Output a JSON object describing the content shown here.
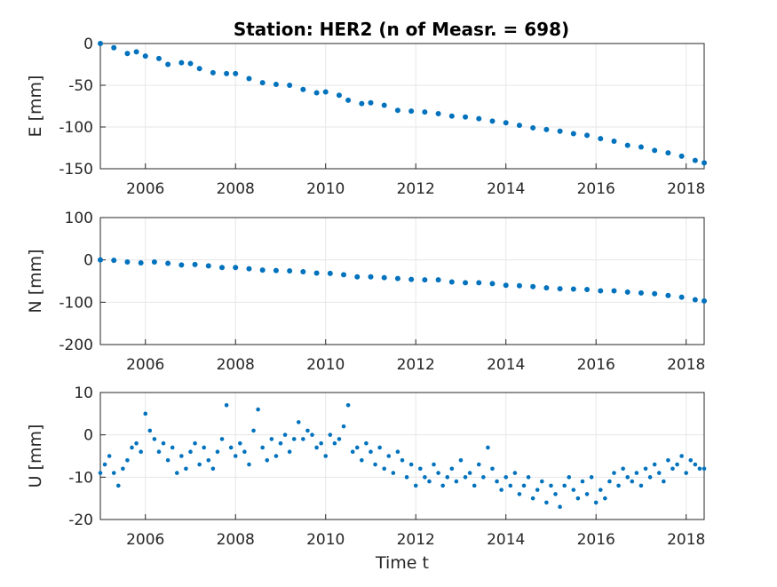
{
  "chart_data": {
    "title": "Station: HER2 (n of Measr. = 698)",
    "type": "scatter",
    "marker_color": "#0072BD",
    "grid": true,
    "subplots": [
      {
        "ylabel": "E [mm]",
        "xlabel": "",
        "xlim": [
          2005.0,
          2018.4
        ],
        "ylim": [
          -150,
          0
        ],
        "xticks": [
          "2006",
          "2008",
          "2010",
          "2012",
          "2014",
          "2016",
          "2018"
        ],
        "yticks": [
          "0",
          "-50",
          "-100",
          "-150"
        ],
        "x": [
          2005.0,
          2005.3,
          2005.6,
          2005.8,
          2006.0,
          2006.3,
          2006.5,
          2006.8,
          2007.0,
          2007.2,
          2007.5,
          2007.8,
          2008.0,
          2008.3,
          2008.6,
          2008.9,
          2009.2,
          2009.5,
          2009.8,
          2010.0,
          2010.3,
          2010.5,
          2010.8,
          2011.0,
          2011.3,
          2011.6,
          2011.9,
          2012.2,
          2012.5,
          2012.8,
          2013.1,
          2013.4,
          2013.7,
          2014.0,
          2014.3,
          2014.6,
          2014.9,
          2015.2,
          2015.5,
          2015.8,
          2016.1,
          2016.4,
          2016.7,
          2017.0,
          2017.3,
          2017.6,
          2017.9,
          2018.2,
          2018.4
        ],
        "y": [
          0,
          -5,
          -12,
          -10,
          -15,
          -18,
          -25,
          -23,
          -24,
          -30,
          -35,
          -36,
          -36,
          -42,
          -47,
          -49,
          -50,
          -55,
          -59,
          -58,
          -62,
          -68,
          -72,
          -71,
          -74,
          -80,
          -81,
          -82,
          -84,
          -87,
          -88,
          -90,
          -93,
          -95,
          -98,
          -101,
          -103,
          -105,
          -108,
          -110,
          -114,
          -117,
          -122,
          -124,
          -128,
          -131,
          -135,
          -140,
          -143
        ]
      },
      {
        "ylabel": "N [mm]",
        "xlabel": "",
        "xlim": [
          2005.0,
          2018.4
        ],
        "ylim": [
          -200,
          100
        ],
        "xticks": [
          "2006",
          "2008",
          "2010",
          "2012",
          "2014",
          "2016",
          "2018"
        ],
        "yticks": [
          "100",
          "0",
          "-100",
          "-200"
        ],
        "x": [
          2005.0,
          2005.3,
          2005.6,
          2005.9,
          2006.2,
          2006.5,
          2006.8,
          2007.1,
          2007.4,
          2007.7,
          2008.0,
          2008.3,
          2008.6,
          2008.9,
          2009.2,
          2009.5,
          2009.8,
          2010.1,
          2010.4,
          2010.7,
          2011.0,
          2011.3,
          2011.6,
          2011.9,
          2012.2,
          2012.5,
          2012.8,
          2013.1,
          2013.4,
          2013.7,
          2014.0,
          2014.3,
          2014.6,
          2014.9,
          2015.2,
          2015.5,
          2015.8,
          2016.1,
          2016.4,
          2016.7,
          2017.0,
          2017.3,
          2017.6,
          2017.9,
          2018.2,
          2018.4
        ],
        "y": [
          0,
          -1,
          -5,
          -7,
          -5,
          -8,
          -12,
          -11,
          -14,
          -18,
          -18,
          -21,
          -24,
          -25,
          -26,
          -28,
          -31,
          -32,
          -35,
          -40,
          -40,
          -42,
          -44,
          -46,
          -47,
          -47,
          -52,
          -54,
          -54,
          -56,
          -60,
          -61,
          -63,
          -66,
          -68,
          -69,
          -70,
          -73,
          -73,
          -76,
          -78,
          -80,
          -84,
          -88,
          -94,
          -97
        ]
      },
      {
        "ylabel": "U [mm]",
        "xlabel": "Time t",
        "xlim": [
          2005.0,
          2018.4
        ],
        "ylim": [
          -20,
          10
        ],
        "xticks": [
          "2006",
          "2008",
          "2010",
          "2012",
          "2014",
          "2016",
          "2018"
        ],
        "yticks": [
          "10",
          "0",
          "-10",
          "-20"
        ],
        "x": [
          2005.0,
          2005.1,
          2005.2,
          2005.3,
          2005.4,
          2005.5,
          2005.6,
          2005.7,
          2005.8,
          2005.9,
          2006.0,
          2006.1,
          2006.2,
          2006.3,
          2006.4,
          2006.5,
          2006.6,
          2006.7,
          2006.8,
          2006.9,
          2007.0,
          2007.1,
          2007.2,
          2007.3,
          2007.4,
          2007.5,
          2007.6,
          2007.7,
          2007.8,
          2007.9,
          2008.0,
          2008.1,
          2008.2,
          2008.3,
          2008.4,
          2008.5,
          2008.6,
          2008.7,
          2008.8,
          2008.9,
          2009.0,
          2009.1,
          2009.2,
          2009.3,
          2009.4,
          2009.5,
          2009.6,
          2009.7,
          2009.8,
          2009.9,
          2010.0,
          2010.1,
          2010.2,
          2010.3,
          2010.4,
          2010.5,
          2010.6,
          2010.7,
          2010.8,
          2010.9,
          2011.0,
          2011.1,
          2011.2,
          2011.3,
          2011.4,
          2011.5,
          2011.6,
          2011.7,
          2011.8,
          2011.9,
          2012.0,
          2012.1,
          2012.2,
          2012.3,
          2012.4,
          2012.5,
          2012.6,
          2012.7,
          2012.8,
          2012.9,
          2013.0,
          2013.1,
          2013.2,
          2013.3,
          2013.4,
          2013.5,
          2013.6,
          2013.7,
          2013.8,
          2013.9,
          2014.0,
          2014.1,
          2014.2,
          2014.3,
          2014.4,
          2014.5,
          2014.6,
          2014.7,
          2014.8,
          2014.9,
          2015.0,
          2015.1,
          2015.2,
          2015.3,
          2015.4,
          2015.5,
          2015.6,
          2015.7,
          2015.8,
          2015.9,
          2016.0,
          2016.1,
          2016.2,
          2016.3,
          2016.4,
          2016.5,
          2016.6,
          2016.7,
          2016.8,
          2016.9,
          2017.0,
          2017.1,
          2017.2,
          2017.3,
          2017.4,
          2017.5,
          2017.6,
          2017.7,
          2017.8,
          2017.9,
          2018.0,
          2018.1,
          2018.2,
          2018.3,
          2018.4
        ],
        "y": [
          -9,
          -7,
          -5,
          -9,
          -12,
          -8,
          -6,
          -3,
          -2,
          -4,
          5,
          1,
          -1,
          -4,
          -2,
          -6,
          -3,
          -9,
          -5,
          -8,
          -4,
          -2,
          -7,
          -3,
          -6,
          -8,
          -4,
          -1,
          7,
          -3,
          -5,
          -2,
          -4,
          -7,
          1,
          6,
          -3,
          -6,
          -1,
          -5,
          -2,
          0,
          -4,
          -1,
          3,
          -1,
          1,
          0,
          -3,
          -2,
          -5,
          0,
          -2,
          -1,
          2,
          7,
          -4,
          -3,
          -6,
          -2,
          -4,
          -7,
          -3,
          -8,
          -5,
          -9,
          -4,
          -6,
          -10,
          -7,
          -12,
          -8,
          -10,
          -11,
          -7,
          -9,
          -12,
          -10,
          -8,
          -11,
          -6,
          -10,
          -9,
          -12,
          -7,
          -10,
          -3,
          -8,
          -11,
          -13,
          -10,
          -12,
          -9,
          -14,
          -12,
          -10,
          -15,
          -13,
          -11,
          -16,
          -12,
          -14,
          -17,
          -12,
          -10,
          -13,
          -15,
          -11,
          -14,
          -10,
          -16,
          -13,
          -15,
          -11,
          -9,
          -12,
          -8,
          -10,
          -11,
          -9,
          -12,
          -8,
          -10,
          -7,
          -9,
          -11,
          -6,
          -8,
          -7,
          -5,
          -9,
          -6,
          -7,
          -8,
          -8
        ]
      }
    ]
  }
}
